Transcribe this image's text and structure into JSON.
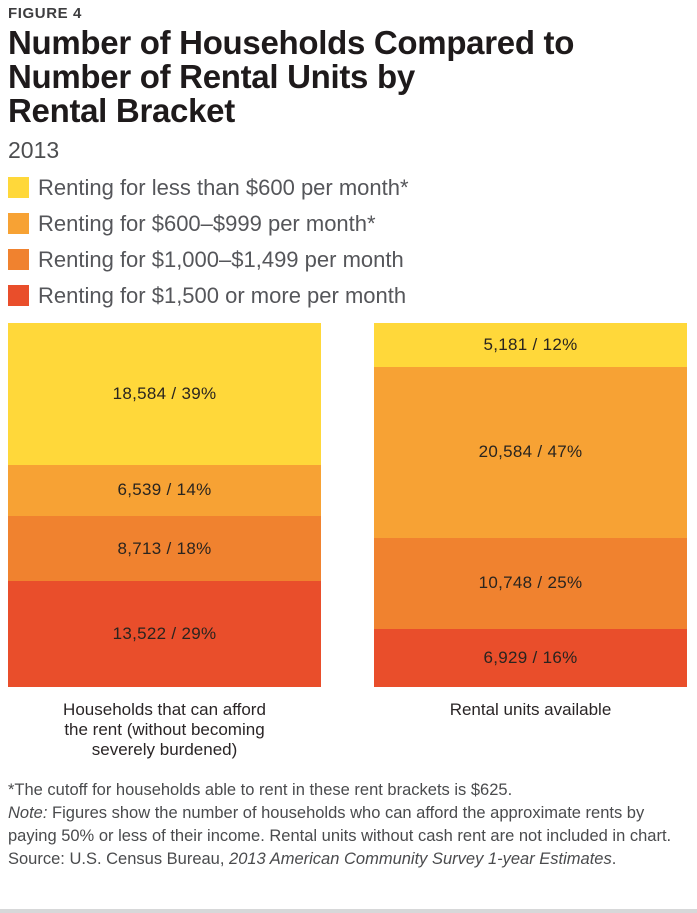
{
  "figure": {
    "eyebrow": "FIGURE 4",
    "title_block": "Number of Households Compared to\nNumber of Rental Units by\nRental Bracket",
    "subtitle": "2013"
  },
  "colors": {
    "yellow": "#FFD83A",
    "amber": "#F7A234",
    "orange": "#F0822F",
    "red": "#E94E2B",
    "title_text": "#1E1A1B",
    "legend_text": "#55565A",
    "note_text": "#4A4B4D"
  },
  "legend": [
    {
      "icon": "legend-swatch-yellow-icon",
      "color": "#FFD83A",
      "label": "Renting for less than $600 per month*"
    },
    {
      "icon": "legend-swatch-amber-icon",
      "color": "#F7A234",
      "label": "Renting for $600–$999 per month*"
    },
    {
      "icon": "legend-swatch-orange-icon",
      "color": "#F0822F",
      "label": "Renting for $1,000–$1,499 per month"
    },
    {
      "icon": "legend-swatch-red-icon",
      "color": "#E94E2B",
      "label": "Renting for $1,500 or more per month"
    }
  ],
  "chart_data": {
    "type": "bar",
    "subtype": "100-percent-stacked-column",
    "title": "Number of Households Compared to Number of Rental Units by Rental Bracket",
    "subtitle": "2013",
    "categories": [
      "Households that can afford the rent (without becoming severely burdened)",
      "Rental units available"
    ],
    "series": [
      {
        "name": "Renting for less than $600 per month*",
        "color": "#FFD83A",
        "values": [
          18584,
          5181
        ],
        "percents": [
          39,
          12
        ]
      },
      {
        "name": "Renting for $600–$999 per month*",
        "color": "#F7A234",
        "values": [
          6539,
          20584
        ],
        "percents": [
          14,
          47
        ]
      },
      {
        "name": "Renting for $1,000–$1,499 per month",
        "color": "#F0822F",
        "values": [
          8713,
          10748
        ],
        "percents": [
          18,
          25
        ]
      },
      {
        "name": "Renting for $1,500 or more per month",
        "color": "#E94E2B",
        "values": [
          13522,
          6929
        ],
        "percents": [
          29,
          16
        ]
      }
    ],
    "legend_position": "top-left",
    "grid": false,
    "axes_shown": false,
    "ylim": [
      0,
      100
    ]
  },
  "bars": [
    {
      "category_label": "Households that can afford\nthe rent (without becoming\nseverely burdened)",
      "segments": [
        {
          "label": "18,584 / 39%",
          "pct": 39,
          "color": "#FFD83A"
        },
        {
          "label": "6,539 / 14%",
          "pct": 14,
          "color": "#F7A234"
        },
        {
          "label": "8,713 / 18%",
          "pct": 18,
          "color": "#F0822F"
        },
        {
          "label": "13,522 / 29%",
          "pct": 29,
          "color": "#E94E2B"
        }
      ]
    },
    {
      "category_label": "Rental units available",
      "segments": [
        {
          "label": "5,181 / 12%",
          "pct": 12,
          "color": "#FFD83A"
        },
        {
          "label": "20,584 / 47%",
          "pct": 47,
          "color": "#F7A234"
        },
        {
          "label": "10,748 / 25%",
          "pct": 25,
          "color": "#F0822F"
        },
        {
          "label": "6,929 / 16%",
          "pct": 16,
          "color": "#E94E2B"
        }
      ]
    }
  ],
  "notes": {
    "footnote": "*The cutoff for households able to rent in these rent brackets is $625.",
    "note_label": "Note:",
    "note_text": " Figures show the number of households who can afford the approximate rents by paying 50% or less of their income. Rental units without cash rent are not included in chart.",
    "source_label": "Source: U.S. Census Bureau, ",
    "source_italic": "2013 American Community Survey 1-year Estimates",
    "source_end": "."
  }
}
